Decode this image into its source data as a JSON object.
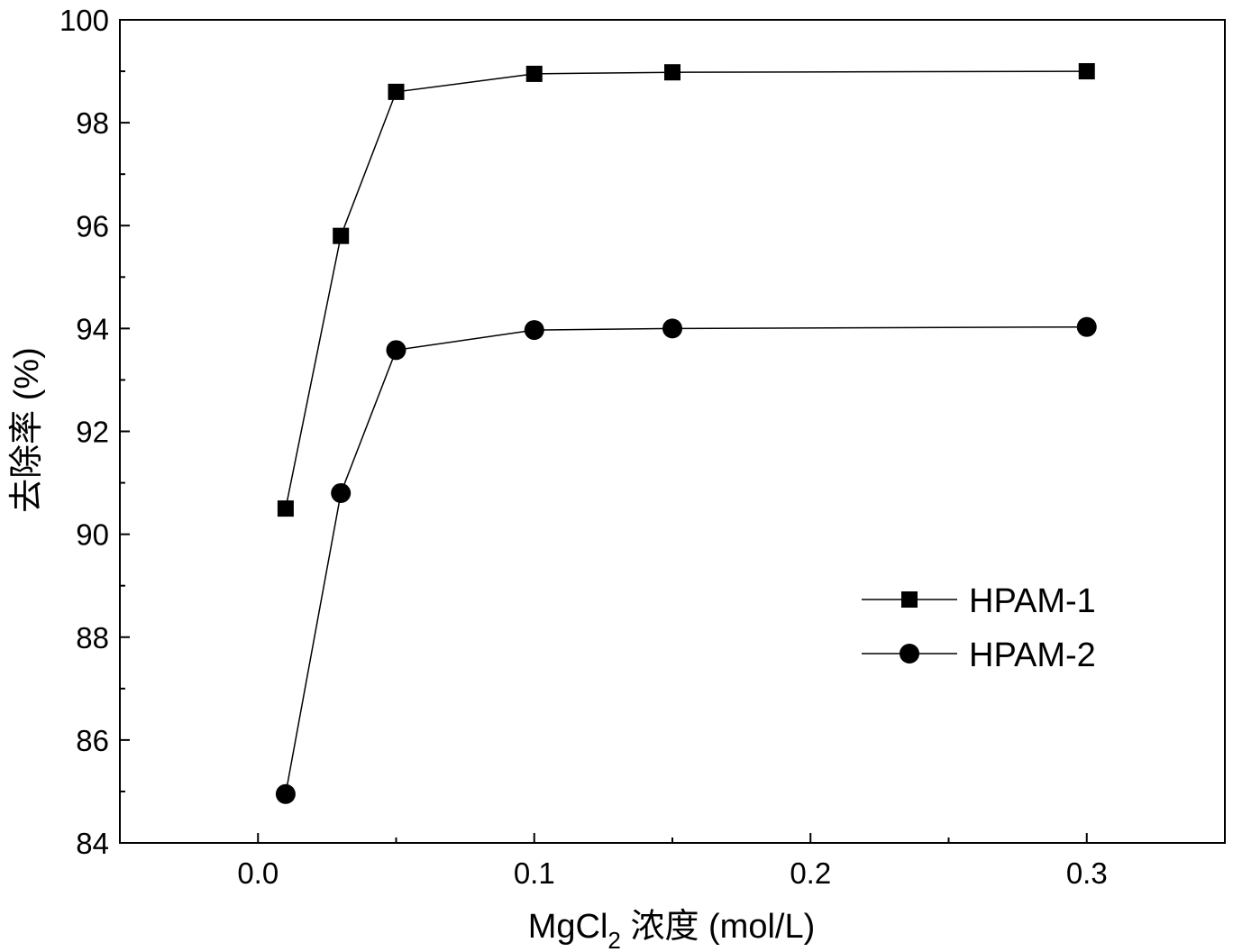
{
  "chart_data": {
    "type": "line",
    "xlabel": {
      "main": "MgCl",
      "subscript": "2",
      "rest": " 浓度 (mol/L)"
    },
    "ylabel": "去除率 (%)",
    "xlim": [
      -0.05,
      0.35
    ],
    "ylim": [
      84,
      100
    ],
    "x_ticks": [
      {
        "value": 0.0,
        "label": "0.0"
      },
      {
        "value": 0.1,
        "label": "0.1"
      },
      {
        "value": 0.2,
        "label": "0.2"
      },
      {
        "value": 0.3,
        "label": "0.3"
      }
    ],
    "x_minor_ticks": [
      -0.05,
      0.05,
      0.15,
      0.25,
      0.35
    ],
    "y_ticks": [
      84,
      86,
      88,
      90,
      92,
      94,
      96,
      98,
      100
    ],
    "y_minor_ticks": [
      85,
      87,
      89,
      91,
      93,
      95,
      97,
      99
    ],
    "series": [
      {
        "name": "HPAM-1",
        "marker": "square",
        "x": [
          0.01,
          0.03,
          0.05,
          0.1,
          0.15,
          0.3
        ],
        "y": [
          90.5,
          95.8,
          98.6,
          98.95,
          98.98,
          99.0
        ]
      },
      {
        "name": "HPAM-2",
        "marker": "circle",
        "x": [
          0.01,
          0.03,
          0.05,
          0.1,
          0.15,
          0.3
        ],
        "y": [
          84.95,
          90.8,
          93.58,
          93.97,
          94.0,
          94.03
        ]
      }
    ],
    "legend": {
      "placement": "lower-right"
    },
    "grid": false,
    "colors": {
      "line": "#000000",
      "marker": "#000000",
      "background": "#ffffff"
    }
  }
}
